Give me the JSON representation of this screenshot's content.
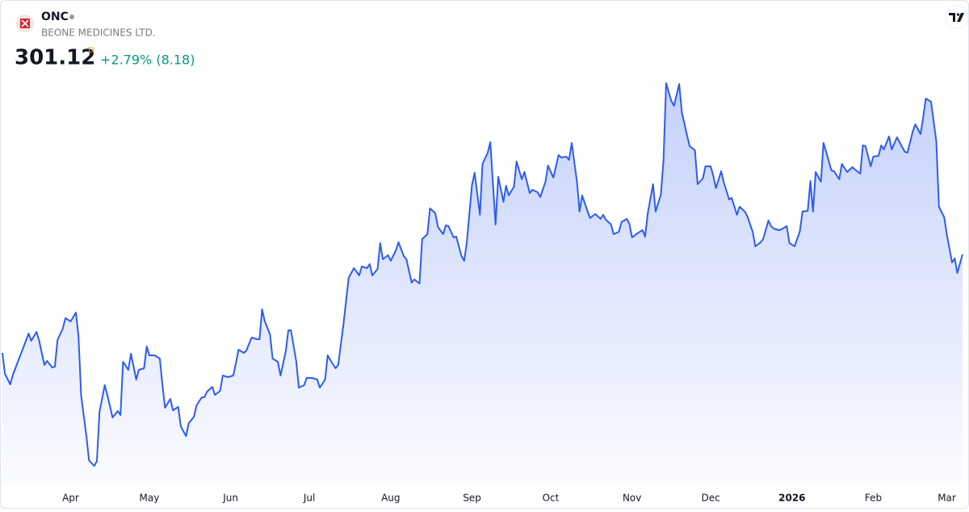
{
  "chart_data": {
    "type": "area",
    "title": "ONC",
    "subtitle": "BEONE MEDICINES LTD.",
    "price": 301.12,
    "interval": "D",
    "change_text": "+2.79% (8.18)",
    "color": "#2e5cf0",
    "x": [
      -26,
      -25,
      -23,
      -22,
      -20,
      -18,
      -16,
      -15,
      -13,
      -12,
      -10,
      -9,
      -7,
      -6,
      -5,
      -3,
      -2,
      0,
      2,
      3,
      4,
      6,
      7,
      9,
      10,
      11,
      13,
      14,
      16,
      18,
      19,
      20,
      22,
      23,
      25,
      26,
      28,
      29,
      30,
      32,
      34,
      35,
      36,
      38,
      39,
      41,
      42,
      44,
      45,
      47,
      48,
      50,
      51,
      52,
      54,
      55,
      57,
      58,
      60,
      62,
      63,
      64,
      66,
      67,
      69,
      71,
      72,
      73,
      74,
      76,
      77,
      79,
      80,
      82,
      83,
      84,
      86,
      87,
      89,
      90,
      92,
      94,
      95,
      97,
      98,
      99,
      101,
      102,
      104,
      105,
      106,
      108,
      110,
      111,
      113,
      114,
      115,
      117,
      118,
      119,
      121,
      122,
      124,
      125,
      127,
      128,
      130,
      131,
      133,
      134,
      136,
      137,
      139,
      140,
      142,
      143,
      144,
      146,
      147,
      149,
      150,
      151,
      153,
      154,
      156,
      157,
      159,
      160,
      162,
      163,
      165,
      166,
      167,
      169,
      170,
      172,
      173,
      175,
      176,
      178,
      179,
      181,
      182,
      184,
      186,
      187,
      189,
      190,
      191,
      193,
      194,
      195,
      197,
      198,
      200,
      202,
      203,
      204,
      206,
      207,
      209,
      210,
      212,
      213,
      214,
      216,
      218,
      219,
      220,
      222,
      223,
      225,
      226,
      227,
      229,
      230,
      232,
      233,
      235,
      236,
      238,
      239,
      241,
      242,
      244,
      245,
      246,
      248,
      249,
      251,
      252,
      254,
      255,
      257,
      258,
      260,
      261,
      263,
      264,
      266,
      267,
      268,
      270,
      271,
      273,
      274,
      276,
      278,
      279,
      281,
      282,
      283,
      284,
      286,
      287,
      288,
      290,
      291,
      293,
      294,
      296,
      298,
      299,
      301,
      302,
      303,
      305,
      306,
      308,
      309,
      310,
      312,
      313,
      315,
      316,
      318,
      319,
      321,
      322,
      324,
      325,
      326,
      328,
      330,
      331,
      333,
      334,
      336,
      337,
      338,
      340
    ],
    "values": [
      252.7,
      242.3,
      237.1,
      241.9,
      248.7,
      255.5,
      262.3,
      258.7,
      263.1,
      258.7,
      246.7,
      248.7,
      245.5,
      245.9,
      259.1,
      264.7,
      269.9,
      268.3,
      272.7,
      261.1,
      231.5,
      211.5,
      199.5,
      196.7,
      199.1,
      223.5,
      236.7,
      231.9,
      220.7,
      223.9,
      221.9,
      248.3,
      244.3,
      252.3,
      239.5,
      244.3,
      245.1,
      255.9,
      251.5,
      251.5,
      249.9,
      236.7,
      225.5,
      229.9,
      224.3,
      225.9,
      216.3,
      211.5,
      217.9,
      221.1,
      226.7,
      230.7,
      230.7,
      233.5,
      235.9,
      231.9,
      233.9,
      241.5,
      240.7,
      241.5,
      247.5,
      254.3,
      252.7,
      253.9,
      260.3,
      259.5,
      259.5,
      274.3,
      268.3,
      261.9,
      249.9,
      248.3,
      241.5,
      253.5,
      263.9,
      263.9,
      248.7,
      235.5,
      236.7,
      240.3,
      240.3,
      239.5,
      235.5,
      239.5,
      251.5,
      249.1,
      245.1,
      246.7,
      266.7,
      278.7,
      289.9,
      294.7,
      291.1,
      295.5,
      294.7,
      296.7,
      291.1,
      294.3,
      307.1,
      299.1,
      301.1,
      298.3,
      303.5,
      307.5,
      300.7,
      299.1,
      287.5,
      289.1,
      287.1,
      309.1,
      311.5,
      324.3,
      321.9,
      315.1,
      311.5,
      315.9,
      315.5,
      309.9,
      310.3,
      300.7,
      298.3,
      307.1,
      335.9,
      341.9,
      321.1,
      346.3,
      351.9,
      357.1,
      316.3,
      339.9,
      327.5,
      335.5,
      330.7,
      335.1,
      347.5,
      338.7,
      342.3,
      331.9,
      333.5,
      332.3,
      329.9,
      337.5,
      345.5,
      339.5,
      350.7,
      349.5,
      349.9,
      348.3,
      356.7,
      337.5,
      322.7,
      330.7,
      323.1,
      319.5,
      321.5,
      319.1,
      321.1,
      318.7,
      316.3,
      311.5,
      312.7,
      317.5,
      319.1,
      316.7,
      309.9,
      311.9,
      313.5,
      310.3,
      321.9,
      336.3,
      322.7,
      331.1,
      348.3,
      386.3,
      377.5,
      375.1,
      385.9,
      371.9,
      360.3,
      355.1,
      353.1,
      336.3,
      339.1,
      345.1,
      345.1,
      340.3,
      334.3,
      342.7,
      337.1,
      328.7,
      329.5,
      321.1,
      325.1,
      322.7,
      320.3,
      312.7,
      305.5,
      307.5,
      309.1,
      318.3,
      315.5,
      314.3,
      313.5,
      313.9,
      315.5,
      307.1,
      305.5,
      313.1,
      322.7,
      323.1,
      337.9,
      322.7,
      342.3,
      337.5,
      356.7,
      352.3,
      343.1,
      342.7,
      338.7,
      346.3,
      342.3,
      344.7,
      343.5,
      341.5,
      355.5,
      355.1,
      345.1,
      349.9,
      350.3,
      355.5,
      353.5,
      359.9,
      353.5,
      359.5,
      357.1,
      352.3,
      351.9,
      362.3,
      365.9,
      361.1,
      369.5,
      378.7,
      377.1,
      357.5,
      325.1,
      319.9,
      311.5,
      297.5,
      299.5,
      292.3,
      301.5
    ],
    "xlim": [
      -26,
      340
    ],
    "xticks": [
      {
        "value": 0,
        "label": "Apr"
      },
      {
        "value": 30,
        "label": "May"
      },
      {
        "value": 61,
        "label": "Jun"
      },
      {
        "value": 91,
        "label": "Jul"
      },
      {
        "value": 122,
        "label": "Aug"
      },
      {
        "value": 153,
        "label": "Sep"
      },
      {
        "value": 183,
        "label": "Oct"
      },
      {
        "value": 214,
        "label": "Nov"
      },
      {
        "value": 244,
        "label": "Dec"
      },
      {
        "value": 275,
        "label": "2026"
      },
      {
        "value": 306,
        "label": "Feb"
      },
      {
        "value": 334,
        "label": "Mar"
      }
    ],
    "ylim": [
      187.5,
      391.5
    ]
  }
}
